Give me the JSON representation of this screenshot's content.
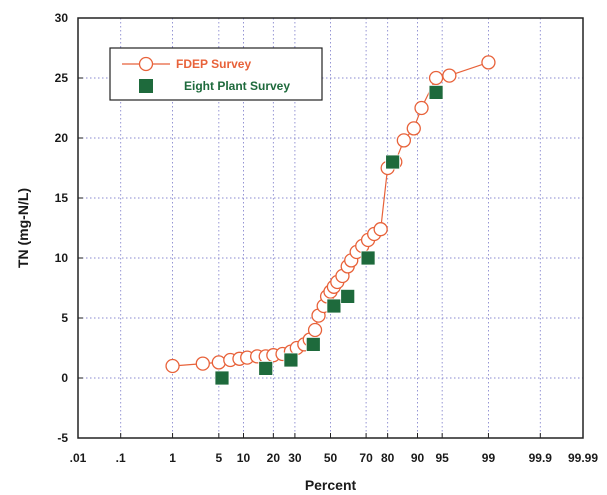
{
  "chart_data": {
    "type": "scatter",
    "title": "",
    "xlabel": "Percent",
    "ylabel": "TN (mg-N/L)",
    "x_scale": "normal-probability",
    "xlim": [
      0.01,
      99.99
    ],
    "ylim": [
      -5,
      30
    ],
    "grid": true,
    "legend_position": "top-left",
    "x_ticks": [
      {
        "value": 0.01,
        "label": ".01"
      },
      {
        "value": 0.1,
        "label": ".1"
      },
      {
        "value": 1,
        "label": "1"
      },
      {
        "value": 5,
        "label": "5"
      },
      {
        "value": 10,
        "label": "10"
      },
      {
        "value": 20,
        "label": "20"
      },
      {
        "value": 30,
        "label": "30"
      },
      {
        "value": 50,
        "label": "50"
      },
      {
        "value": 70,
        "label": "70"
      },
      {
        "value": 80,
        "label": "80"
      },
      {
        "value": 90,
        "label": "90"
      },
      {
        "value": 95,
        "label": "95"
      },
      {
        "value": 99,
        "label": "99"
      },
      {
        "value": 99.9,
        "label": "99.9"
      },
      {
        "value": 99.99,
        "label": "99.99"
      }
    ],
    "y_ticks": [
      -5,
      0,
      5,
      10,
      15,
      20,
      25,
      30
    ],
    "series": [
      {
        "name": "FDEP Survey",
        "color": "#e8623a",
        "marker": "open-circle",
        "line": true,
        "points": [
          [
            1,
            1.0
          ],
          [
            3,
            1.2
          ],
          [
            5,
            1.3
          ],
          [
            7,
            1.5
          ],
          [
            9,
            1.6
          ],
          [
            11,
            1.7
          ],
          [
            14,
            1.8
          ],
          [
            17,
            1.8
          ],
          [
            20,
            1.9
          ],
          [
            24,
            2.0
          ],
          [
            28,
            2.2
          ],
          [
            31,
            2.5
          ],
          [
            35,
            2.8
          ],
          [
            38,
            3.2
          ],
          [
            41,
            4.0
          ],
          [
            43,
            5.2
          ],
          [
            46,
            6.0
          ],
          [
            48,
            6.8
          ],
          [
            50,
            7.2
          ],
          [
            52,
            7.6
          ],
          [
            54,
            8.0
          ],
          [
            57,
            8.5
          ],
          [
            60,
            9.3
          ],
          [
            62,
            9.8
          ],
          [
            65,
            10.5
          ],
          [
            68,
            11.0
          ],
          [
            71,
            11.5
          ],
          [
            74,
            12.0
          ],
          [
            77,
            12.4
          ],
          [
            80,
            17.5
          ],
          [
            83,
            18.0
          ],
          [
            86,
            19.8
          ],
          [
            89,
            20.8
          ],
          [
            91,
            22.5
          ],
          [
            94,
            25.0
          ],
          [
            96,
            25.2
          ],
          [
            99,
            26.3
          ]
        ]
      },
      {
        "name": "Eight Plant Survey",
        "color": "#1e6a3c",
        "marker": "filled-square",
        "line": false,
        "points": [
          [
            5.5,
            0.0
          ],
          [
            17,
            0.8
          ],
          [
            28,
            1.5
          ],
          [
            40,
            2.8
          ],
          [
            52,
            6.0
          ],
          [
            60,
            6.8
          ],
          [
            71,
            10.0
          ],
          [
            82,
            18.0
          ],
          [
            94,
            23.8
          ]
        ]
      }
    ]
  }
}
